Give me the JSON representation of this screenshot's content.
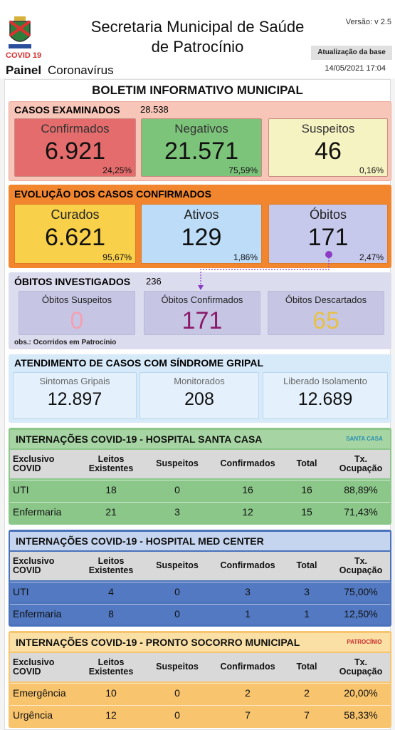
{
  "header": {
    "logo_label": "COVID 19",
    "panel_bold": "Painel",
    "panel_rest": "Coronavírus",
    "title_lines": [
      "Secretaria Municipal de Saúde",
      "de Patrocínio"
    ],
    "version": "Versão: v 2.5",
    "update_label": "Atualização da base",
    "update_date": "14/05/2021 17:04"
  },
  "bulletin_title": "BOLETIM INFORMATIVO MUNICIPAL",
  "examined": {
    "title": "CASOS EXAMINADOS",
    "total": "28.538",
    "cards": [
      {
        "label": "Confirmados",
        "value": "6.921",
        "percent": "24,25%"
      },
      {
        "label": "Negativos",
        "value": "21.571",
        "percent": "75,59%"
      },
      {
        "label": "Suspeitos",
        "value": "46",
        "percent": "0,16%"
      }
    ]
  },
  "evolution": {
    "title": "EVOLUÇÃO DOS CASOS CONFIRMADOS",
    "cards": [
      {
        "label": "Curados",
        "value": "6.621",
        "percent": "95,67%"
      },
      {
        "label": "Ativos",
        "value": "129",
        "percent": "1,86%"
      },
      {
        "label": "Óbitos",
        "value": "171",
        "percent": "2,47%"
      }
    ]
  },
  "deaths": {
    "title": "ÓBITOS INVESTIGADOS",
    "total": "236",
    "cards": [
      {
        "label": "Óbitos Suspeitos",
        "value": "0"
      },
      {
        "label": "Óbitos Confirmados",
        "value": "171"
      },
      {
        "label": "Óbitos Descartados",
        "value": "65"
      }
    ],
    "note": "obs.: Ocorridos em Patrocínio"
  },
  "flu": {
    "title": "ATENDIMENTO DE CASOS COM SÍNDROME GRIPAL",
    "cards": [
      {
        "label": "Sintomas Gripais",
        "value": "12.897"
      },
      {
        "label": "Monitorados",
        "value": "208"
      },
      {
        "label": "Liberado Isolamento",
        "value": "12.689"
      }
    ]
  },
  "hospitals": [
    {
      "title": "INTERNAÇÕES COVID-19 - HOSPITAL SANTA CASA",
      "logo": "SANTA CASA",
      "headers": [
        "Exclusivo\nCOVID",
        "Leitos\nExistentes",
        "Suspeitos",
        "Confirmados",
        "Total",
        "Tx.\nOcupação"
      ],
      "rows": [
        [
          "UTI",
          "18",
          "0",
          "16",
          "16",
          "88,89%"
        ],
        [
          "Enfermaria",
          "21",
          "3",
          "12",
          "15",
          "71,43%"
        ]
      ]
    },
    {
      "title": "INTERNAÇÕES COVID-19 - HOSPITAL MED CENTER",
      "headers": [
        "Exclusivo\nCOVID",
        "Leitos\nExistentes",
        "Suspeitos",
        "Confirmados",
        "Total",
        "Tx.\nOcupação"
      ],
      "rows": [
        [
          "UTI",
          "4",
          "0",
          "3",
          "3",
          "75,00%"
        ],
        [
          "Enfermaria",
          "8",
          "0",
          "1",
          "1",
          "12,50%"
        ]
      ]
    },
    {
      "title": "INTERNAÇÕES COVID-19 - PRONTO SOCORRO MUNICIPAL",
      "logo": "PATROCÍNIO",
      "headers": [
        "Exclusivo\nCOVID",
        "Leitos\nExistentes",
        "Suspeitos",
        "Confirmados",
        "Total",
        "Tx.\nOcupação"
      ],
      "rows": [
        [
          "Emergência",
          "10",
          "0",
          "2",
          "2",
          "20,00%"
        ],
        [
          "Urgência",
          "12",
          "0",
          "7",
          "7",
          "58,33%"
        ]
      ]
    }
  ]
}
